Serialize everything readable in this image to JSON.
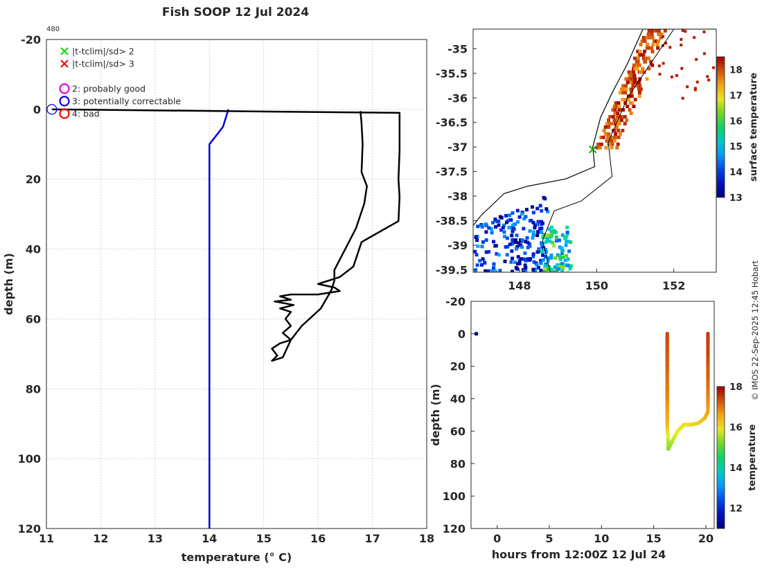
{
  "title": "Fish SOOP 12 Jul 2024",
  "credit": "© IMOS 22-Sep-2025 12:45 Hobart",
  "chart_data": [
    {
      "id": "profile",
      "type": "line",
      "xlabel": "temperature (° C)",
      "ylabel": "depth (m)",
      "xlim": [
        11,
        18
      ],
      "ylim": [
        -20,
        120
      ],
      "y_reversed": true,
      "xticks": [
        11,
        12,
        13,
        14,
        15,
        16,
        17,
        18
      ],
      "yticks": [
        -20,
        0,
        20,
        40,
        60,
        80,
        100,
        120
      ],
      "grid": true,
      "corner_label": "480",
      "legend": {
        "placement": "top-left",
        "entries": [
          {
            "label": "|t-tclim|/sd> 2",
            "marker": "x",
            "color": "#00dd00"
          },
          {
            "label": "|t-tclim|/sd> 3",
            "marker": "x",
            "color": "#ee0000"
          },
          {
            "label": "2: probably good",
            "marker": "circle",
            "color": "#e000e0"
          },
          {
            "label": "3: potentially correctable",
            "marker": "circle",
            "color": "#0000e0"
          },
          {
            "label": "4: bad",
            "marker": "circle",
            "color": "#ee0000"
          }
        ]
      },
      "series": [
        {
          "role": "climatology",
          "color": "#0000dd",
          "points": [
            [
              14.35,
              0
            ],
            [
              14.25,
              5
            ],
            [
              14.0,
              10
            ],
            [
              14.0,
              120
            ]
          ]
        },
        {
          "role": "observed",
          "color": "#000000",
          "points": [
            [
              11.1,
              0
            ],
            [
              17.5,
              1
            ],
            [
              17.5,
              12
            ],
            [
              17.48,
              20
            ],
            [
              17.5,
              25
            ],
            [
              17.48,
              32
            ],
            [
              16.8,
              38
            ],
            [
              16.65,
              45
            ],
            [
              16.4,
              48
            ],
            [
              16.0,
              50
            ],
            [
              16.3,
              51
            ],
            [
              16.4,
              52
            ],
            [
              16.0,
              53
            ],
            [
              15.5,
              53
            ],
            [
              15.3,
              53.5
            ],
            [
              15.5,
              54.5
            ],
            [
              15.2,
              55
            ],
            [
              15.55,
              56
            ],
            [
              15.3,
              57
            ],
            [
              15.5,
              58
            ],
            [
              15.4,
              60
            ],
            [
              15.5,
              62
            ],
            [
              15.35,
              64
            ],
            [
              15.5,
              66
            ],
            [
              15.3,
              67
            ],
            [
              15.15,
              68.5
            ],
            [
              15.25,
              70.5
            ],
            [
              15.15,
              72
            ],
            [
              15.35,
              71
            ],
            [
              15.5,
              66
            ],
            [
              15.7,
              62
            ],
            [
              16.05,
              57
            ],
            [
              16.2,
              53
            ],
            [
              16.25,
              51.5
            ],
            [
              16.3,
              49
            ],
            [
              16.3,
              46
            ],
            [
              16.5,
              40
            ],
            [
              16.7,
              34
            ],
            [
              16.85,
              27
            ],
            [
              16.9,
              22
            ],
            [
              16.8,
              18
            ],
            [
              16.82,
              10
            ],
            [
              16.8,
              4
            ],
            [
              16.78,
              0.5
            ]
          ]
        }
      ],
      "flag_marker": {
        "x": 11.1,
        "y": 0,
        "shape": "circle",
        "color": "#0000e0"
      }
    },
    {
      "id": "map",
      "type": "heatmap",
      "xlabel": "",
      "ylabel": "",
      "xlim": [
        146.8,
        153.1
      ],
      "ylim": [
        -39.55,
        -34.6
      ],
      "xticks": [
        148,
        150,
        152
      ],
      "yticks": [
        -35,
        -35.5,
        -36,
        -36.5,
        -37,
        -37.5,
        -38,
        -38.5,
        -39,
        -39.5
      ],
      "colorbar": {
        "label": "surface temperature",
        "range": [
          13,
          18.5
        ],
        "ticks": [
          13,
          14,
          15,
          16,
          17,
          18
        ]
      },
      "coast": [
        [
          153.1,
          -34.6
        ],
        [
          151.2,
          -34.6
        ],
        [
          150.8,
          -35.3
        ],
        [
          150.4,
          -35.9
        ],
        [
          150.1,
          -36.4
        ],
        [
          149.9,
          -37.0
        ],
        [
          149.95,
          -37.4
        ],
        [
          149.2,
          -37.65
        ],
        [
          148.2,
          -37.8
        ],
        [
          147.6,
          -37.95
        ],
        [
          147.0,
          -38.4
        ],
        [
          146.8,
          -38.6
        ]
      ],
      "vessel_mark": {
        "lon": 149.9,
        "lat": -37.05,
        "marker": "x",
        "color": "#00aa00"
      }
    },
    {
      "id": "time_section",
      "type": "scatter",
      "xlabel": "hours from 12:00Z 12 Jul 24",
      "ylabel": "depth (m)",
      "xlim": [
        -2.5,
        20.8
      ],
      "ylim": [
        -20,
        120
      ],
      "y_reversed": true,
      "xticks": [
        0,
        5,
        10,
        15,
        20
      ],
      "yticks": [
        -20,
        0,
        20,
        40,
        60,
        80,
        100,
        120
      ],
      "colorbar": {
        "label": "temperature",
        "range": [
          11,
          18
        ],
        "ticks": [
          12,
          14,
          16,
          18
        ]
      },
      "points": [
        {
          "x": -2.0,
          "y": 0,
          "t": 11.2
        },
        {
          "x": 16.3,
          "y": 0,
          "t": 17.4
        },
        {
          "x": 16.3,
          "y": 10,
          "t": 17.3
        },
        {
          "x": 16.3,
          "y": 20,
          "t": 17.2
        },
        {
          "x": 16.3,
          "y": 32,
          "t": 17.0
        },
        {
          "x": 16.3,
          "y": 40,
          "t": 16.9
        },
        {
          "x": 16.3,
          "y": 50,
          "t": 16.6
        },
        {
          "x": 16.3,
          "y": 58,
          "t": 16.2
        },
        {
          "x": 16.4,
          "y": 66,
          "t": 15.6
        },
        {
          "x": 16.4,
          "y": 71,
          "t": 15.3
        },
        {
          "x": 16.8,
          "y": 66,
          "t": 15.5
        },
        {
          "x": 17.3,
          "y": 60,
          "t": 15.8
        },
        {
          "x": 17.9,
          "y": 56,
          "t": 15.9
        },
        {
          "x": 18.6,
          "y": 56,
          "t": 16.0
        },
        {
          "x": 19.3,
          "y": 55,
          "t": 16.1
        },
        {
          "x": 19.9,
          "y": 52,
          "t": 16.3
        },
        {
          "x": 20.2,
          "y": 48,
          "t": 16.6
        },
        {
          "x": 20.2,
          "y": 36,
          "t": 17.0
        },
        {
          "x": 20.2,
          "y": 24,
          "t": 17.2
        },
        {
          "x": 20.2,
          "y": 12,
          "t": 17.4
        },
        {
          "x": 20.2,
          "y": 0,
          "t": 17.5
        }
      ]
    }
  ]
}
